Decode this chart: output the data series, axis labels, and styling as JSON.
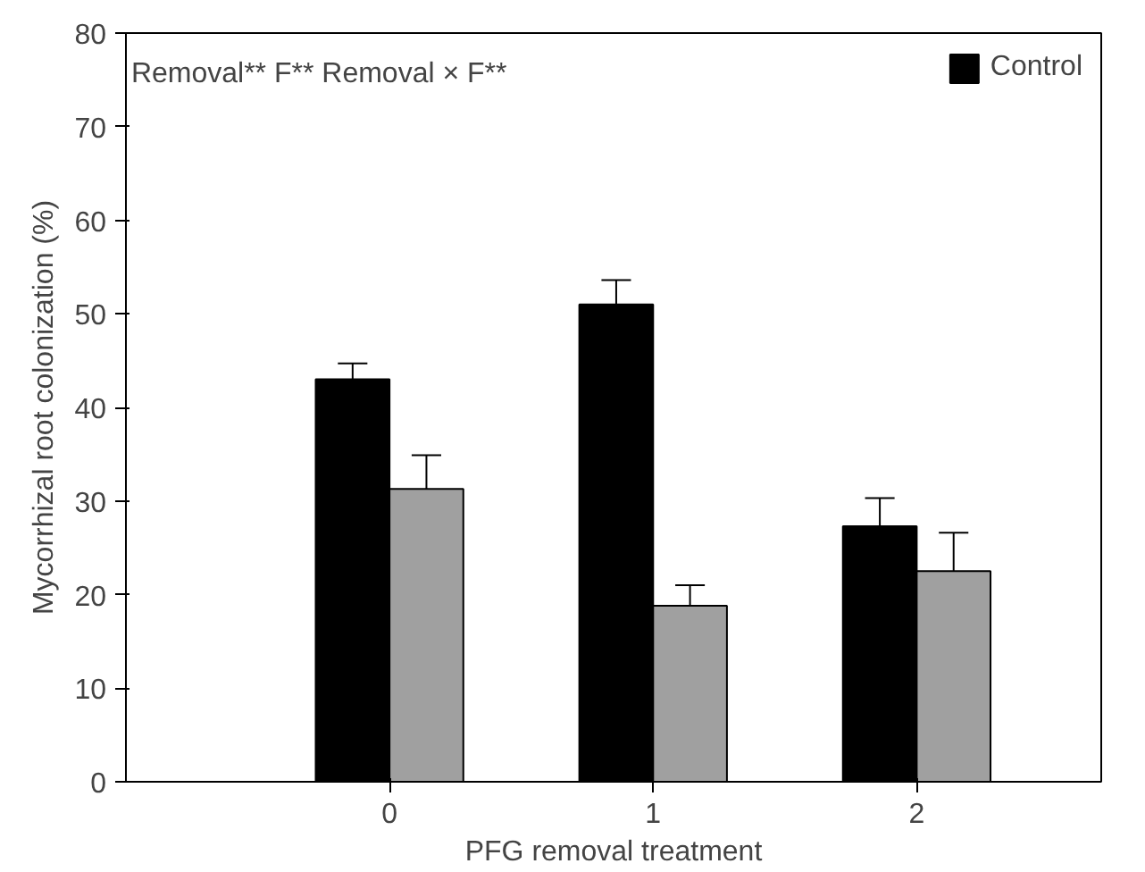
{
  "chart_data": {
    "type": "bar",
    "xlabel": "PFG removal treatment",
    "ylabel": "Mycorrhizal root colonization (%)",
    "x": [
      0,
      1,
      2
    ],
    "xlim": [
      -1,
      2.7
    ],
    "xticks": [
      0,
      1,
      2
    ],
    "ylim": [
      0,
      80
    ],
    "yticks": [
      0,
      10,
      20,
      30,
      40,
      50,
      60,
      70,
      80
    ],
    "series": [
      {
        "name": "Control",
        "color": "#000000",
        "values": [
          43,
          51,
          27.3
        ],
        "errors": [
          [
            43,
            44.7
          ],
          [
            51,
            53.6
          ],
          [
            27.3,
            30.3
          ]
        ]
      },
      {
        "color": "#a0a0a0",
        "values": [
          31.3,
          18.8,
          22.5
        ],
        "errors": [
          [
            31.3,
            34.9
          ],
          [
            18.8,
            21
          ],
          [
            22.5,
            26.6
          ]
        ]
      }
    ],
    "annotations": [
      "Removal** F** Removal × F**"
    ],
    "legend": "top right",
    "grid": false
  }
}
